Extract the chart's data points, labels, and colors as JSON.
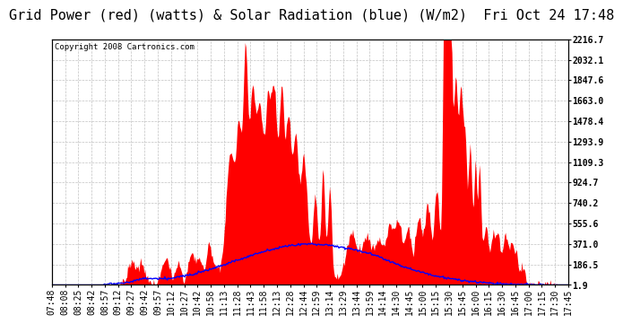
{
  "title": "Grid Power (red) (watts) & Solar Radiation (blue) (W/m2)  Fri Oct 24 17:48",
  "copyright": "Copyright 2008 Cartronics.com",
  "background_color": "#ffffff",
  "plot_bg_color": "#ffffff",
  "grid_color": "#bbbbbb",
  "yticks": [
    1.9,
    186.5,
    371.0,
    555.6,
    740.2,
    924.7,
    1109.3,
    1293.9,
    1478.4,
    1663.0,
    1847.6,
    2032.1,
    2216.7
  ],
  "ylim": [
    1.9,
    2216.7
  ],
  "x_labels": [
    "07:48",
    "08:08",
    "08:25",
    "08:42",
    "08:57",
    "09:12",
    "09:27",
    "09:42",
    "09:57",
    "10:12",
    "10:27",
    "10:42",
    "10:58",
    "11:13",
    "11:28",
    "11:43",
    "11:58",
    "12:13",
    "12:28",
    "12:44",
    "12:59",
    "13:14",
    "13:29",
    "13:44",
    "13:59",
    "14:14",
    "14:30",
    "14:45",
    "15:00",
    "15:15",
    "15:30",
    "15:45",
    "16:00",
    "16:15",
    "16:30",
    "16:45",
    "17:00",
    "17:15",
    "17:30",
    "17:45"
  ],
  "red_color": "#ff0000",
  "blue_color": "#0000ff",
  "title_fontsize": 11,
  "axis_fontsize": 7,
  "copyright_fontsize": 6.5
}
